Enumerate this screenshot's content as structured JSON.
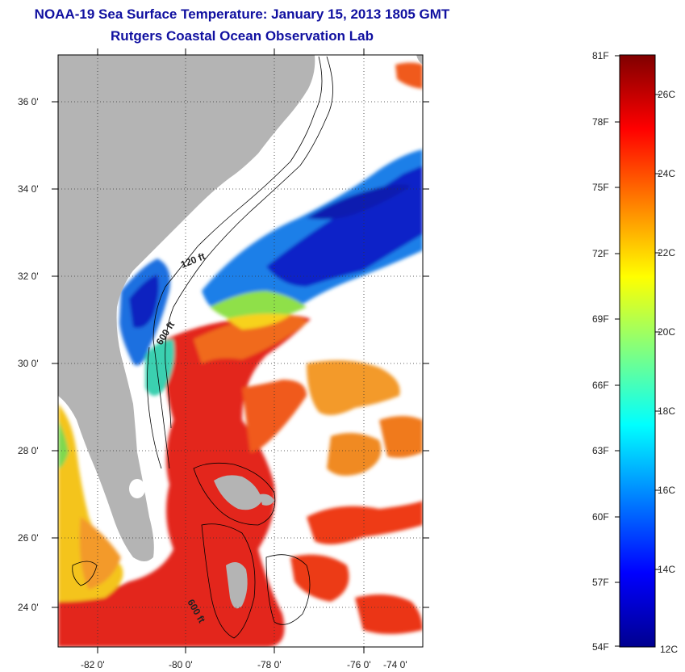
{
  "title": {
    "line1": "NOAA-19 Sea Surface Temperature:  January 15, 2013 1805 GMT",
    "line2": "Rutgers Coastal Ocean Observation Lab"
  },
  "axes": {
    "lat_labels": [
      "36 0'",
      "34 0'",
      "32 0'",
      "30 0'",
      "28 0'",
      "26 0'",
      "24 0'"
    ],
    "lon_labels": [
      "-82 0'",
      "-80 0'",
      "-78 0'",
      "-76 0'",
      "-74 0'"
    ]
  },
  "isobaths": {
    "label_120": "120 ft",
    "label_600_north": "600 ft",
    "label_600_south": "600 ft"
  },
  "colorbar": {
    "fahrenheit": [
      "81F",
      "78F",
      "75F",
      "72F",
      "69F",
      "66F",
      "63F",
      "60F",
      "57F",
      "54F"
    ],
    "celsius": [
      "26C",
      "24C",
      "22C",
      "20C",
      "18C",
      "16C",
      "14C",
      "12C"
    ]
  },
  "colors": {
    "land": "#b4b4b4",
    "title": "#1010a0",
    "cold": "#00008f",
    "warm": "#e02800"
  }
}
